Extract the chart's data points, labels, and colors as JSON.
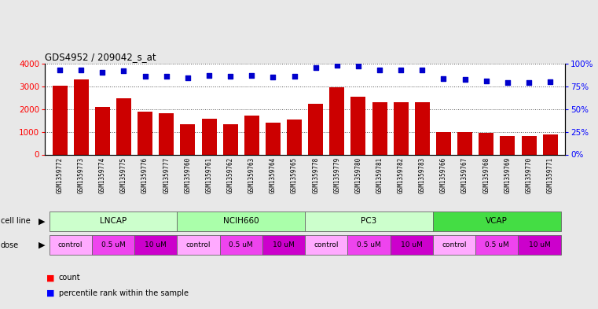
{
  "title": "GDS4952 / 209042_s_at",
  "samples": [
    "GSM1359772",
    "GSM1359773",
    "GSM1359774",
    "GSM1359775",
    "GSM1359776",
    "GSM1359777",
    "GSM1359760",
    "GSM1359761",
    "GSM1359762",
    "GSM1359763",
    "GSM1359764",
    "GSM1359765",
    "GSM1359778",
    "GSM1359779",
    "GSM1359780",
    "GSM1359781",
    "GSM1359782",
    "GSM1359783",
    "GSM1359766",
    "GSM1359767",
    "GSM1359768",
    "GSM1359769",
    "GSM1359770",
    "GSM1359771"
  ],
  "counts": [
    3030,
    3280,
    2100,
    2450,
    1880,
    1800,
    1320,
    1560,
    1330,
    1720,
    1390,
    1540,
    2230,
    2960,
    2520,
    2300,
    2280,
    2280,
    980,
    990,
    960,
    820,
    820,
    870
  ],
  "percentiles": [
    93,
    93,
    90,
    92,
    86,
    86,
    84,
    87,
    86,
    87,
    85,
    86,
    95,
    98,
    97,
    93,
    93,
    93,
    83,
    82,
    81,
    79,
    79,
    80
  ],
  "bar_color": "#cc0000",
  "dot_color": "#0000cc",
  "ylim_left": [
    0,
    4000
  ],
  "ylim_right": [
    0,
    100
  ],
  "yticks_left": [
    0,
    1000,
    2000,
    3000,
    4000
  ],
  "yticks_right": [
    0,
    25,
    50,
    75,
    100
  ],
  "bg_color": "#e8e8e8",
  "plot_bg": "#ffffff",
  "xtick_bg": "#d0d0d0",
  "cell_lines": [
    {
      "label": "LNCAP",
      "start": 0,
      "end": 6,
      "color": "#ccffcc"
    },
    {
      "label": "NCIH660",
      "start": 6,
      "end": 12,
      "color": "#aaffaa"
    },
    {
      "label": "PC3",
      "start": 12,
      "end": 18,
      "color": "#ccffcc"
    },
    {
      "label": "VCAP",
      "start": 18,
      "end": 24,
      "color": "#44dd44"
    }
  ],
  "doses": [
    {
      "start": 0,
      "end": 2,
      "label": "control",
      "color": "#ffaaff"
    },
    {
      "start": 2,
      "end": 4,
      "label": "0.5 uM",
      "color": "#ee44ee"
    },
    {
      "start": 4,
      "end": 6,
      "label": "10 uM",
      "color": "#cc00cc"
    },
    {
      "start": 6,
      "end": 8,
      "label": "control",
      "color": "#ffaaff"
    },
    {
      "start": 8,
      "end": 10,
      "label": "0.5 uM",
      "color": "#ee44ee"
    },
    {
      "start": 10,
      "end": 12,
      "label": "10 uM",
      "color": "#cc00cc"
    },
    {
      "start": 12,
      "end": 14,
      "label": "control",
      "color": "#ffaaff"
    },
    {
      "start": 14,
      "end": 16,
      "label": "0.5 uM",
      "color": "#ee44ee"
    },
    {
      "start": 16,
      "end": 18,
      "label": "10 uM",
      "color": "#cc00cc"
    },
    {
      "start": 18,
      "end": 20,
      "label": "control",
      "color": "#ffaaff"
    },
    {
      "start": 20,
      "end": 22,
      "label": "0.5 uM",
      "color": "#ee44ee"
    },
    {
      "start": 22,
      "end": 24,
      "label": "10 uM",
      "color": "#cc00cc"
    }
  ]
}
